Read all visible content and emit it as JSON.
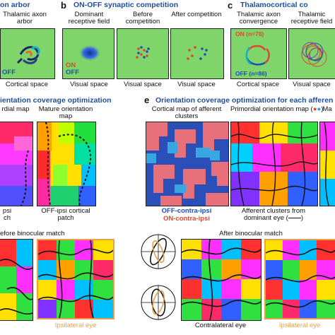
{
  "row1": {
    "a_header": "on arbor",
    "a_sub": "Thalamic axon arbor",
    "a_label_off": "OFF",
    "a_caption": "Cortical space",
    "b_letter": "b",
    "b_header": "ON-OFF synaptic competition",
    "b_col1": "Dominant receptive field",
    "b_col2": "Before competition",
    "b_col3": "After competition",
    "b_on": "ON",
    "b_off": "OFF",
    "b_caption": "Visual space",
    "c_letter": "c",
    "c_header": "Thalamocortical co",
    "c_col1": "Thalamic axon convergence",
    "c_col2": "Thalamic receptive field",
    "c_on": "ON (n=78)",
    "c_off": "OFF (n=86)",
    "c_caption1": "Cortical space",
    "c_caption2": "Visual space"
  },
  "row2": {
    "d_header": "ientation coverage optimization",
    "d_col1": "rdial map",
    "d_col2": "Mature orientation map",
    "d_caption1": "psi",
    "d_caption1b": "ch",
    "d_caption2": "OFF-ipsi cortical patch",
    "e_letter": "e",
    "e_header": "Orientation coverage optimization for each afferen",
    "e_col1": "Cortical map of afferent clusters",
    "e_col2": "Primordial orientation map (",
    "e_col2_end": ")",
    "e_col3": "Ma",
    "e_legend_off": "OFF-contra-ipsi",
    "e_legend_on": "ON-contra-ipsi",
    "e_caption2": "Afferent clusters from dominant eye (",
    "e_caption2_end": ")"
  },
  "row3": {
    "left_header": "efore binocular match",
    "right_header": "After binocular match",
    "cap_ipsi_left": "Ipsilateral eye",
    "cap_contra": "Contralateral eye",
    "cap_ipsi_right": "Ipsilateral eye"
  },
  "colors": {
    "green_panel": "#7fd56a",
    "on_red": "#e0462d",
    "off_blue": "#1c4fb3",
    "orange_frame": "#e8a04a",
    "header_blue": "#1f4e9c"
  }
}
